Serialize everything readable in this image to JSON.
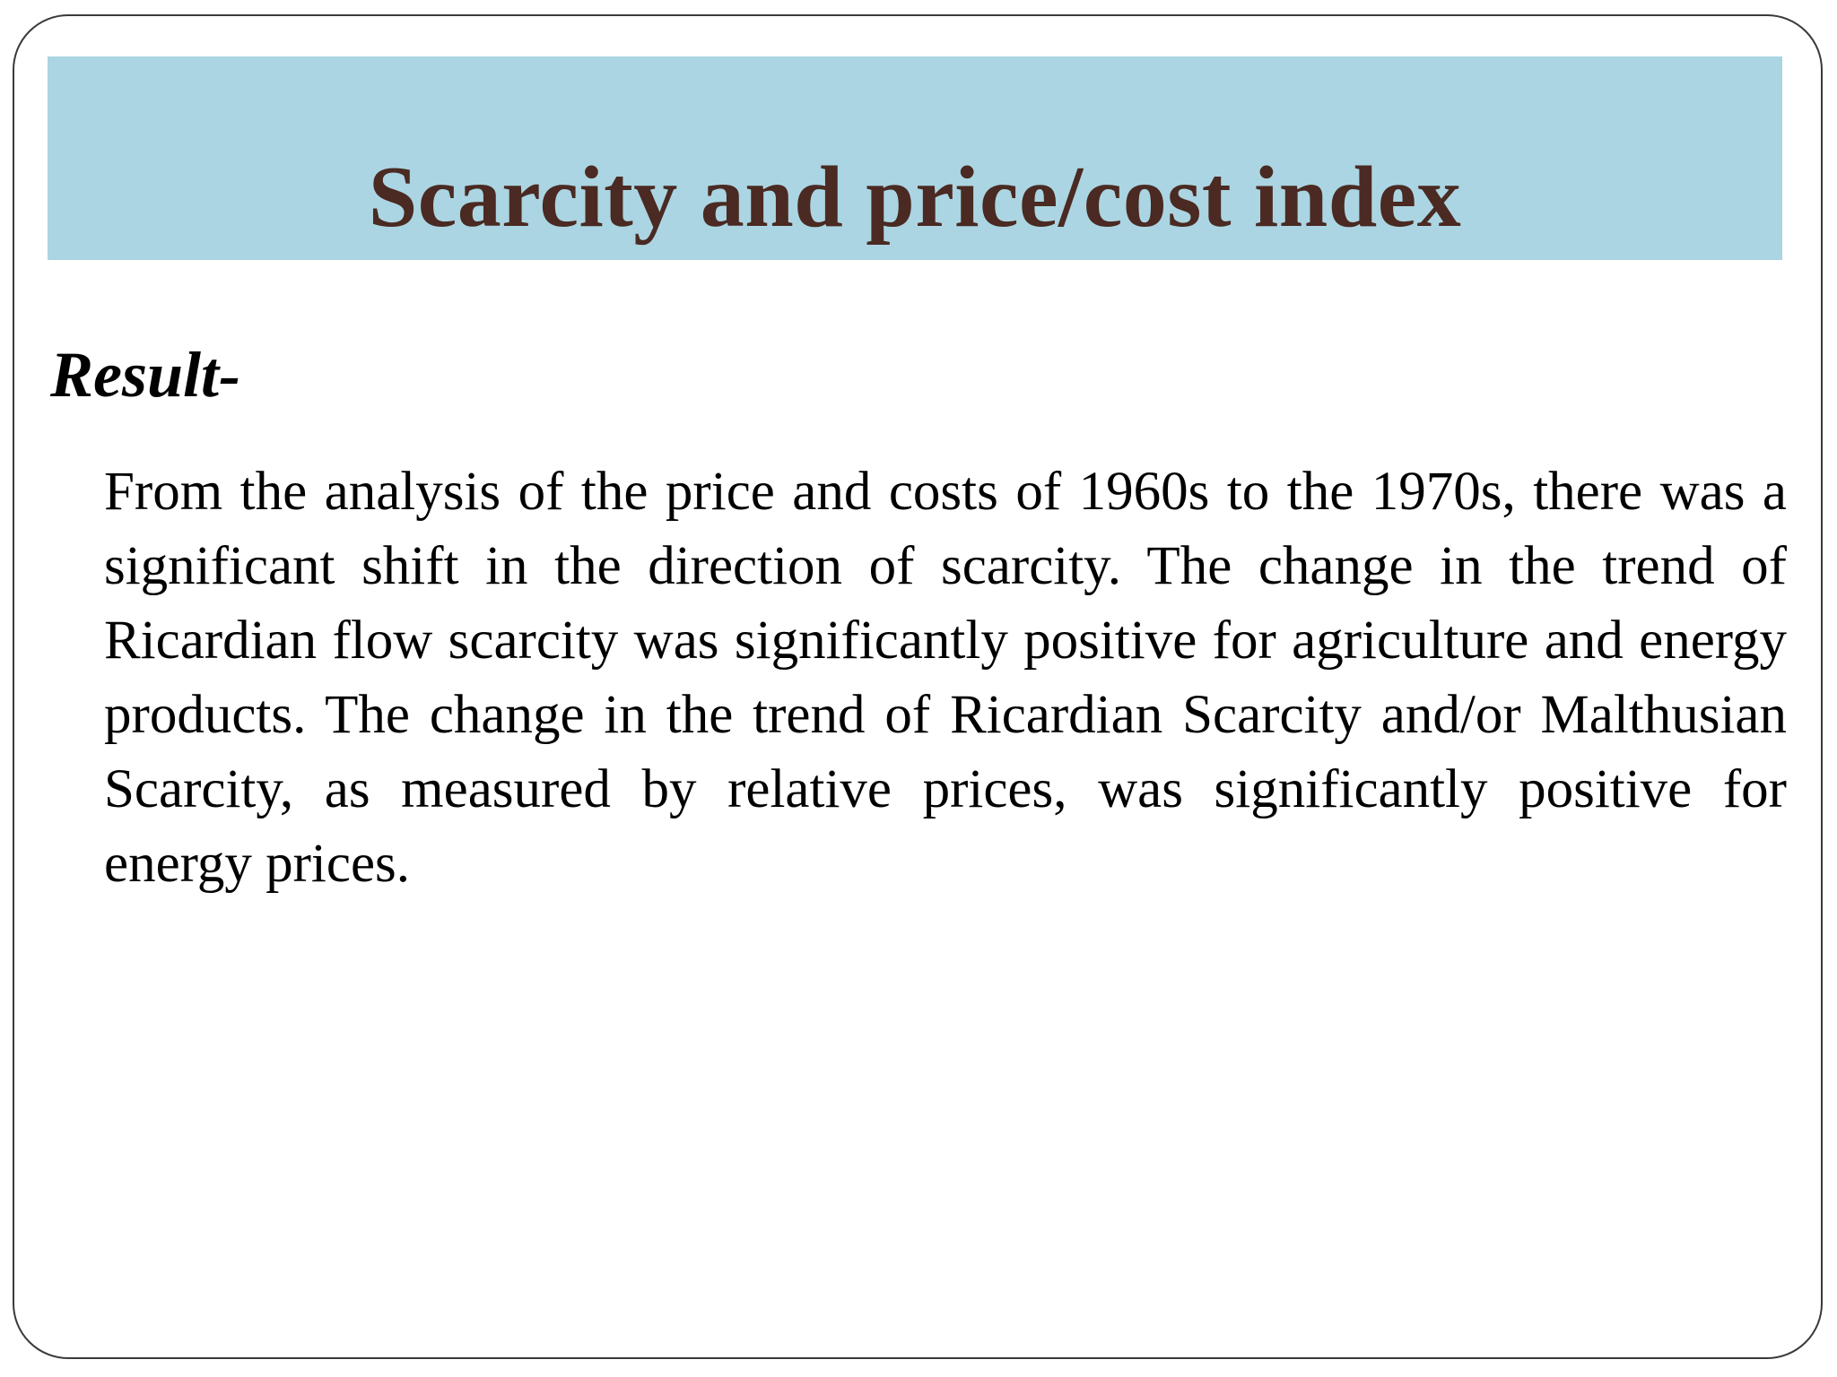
{
  "slide": {
    "title": "Scarcity and price/cost index",
    "subheading": "Result-",
    "body": "From the analysis of the price and costs of 1960s to the 1970s, there was a significant shift in the direction of scarcity. The change in the trend of Ricardian flow scarcity was significantly positive for agriculture and energy products. The change in the trend of Ricardian Scarcity and/or Malthusian Scarcity, as measured by relative prices, was significantly positive for energy prices."
  },
  "colors": {
    "title_band": "#abd5e2",
    "title_text": "#4a2a22",
    "body_text": "#000000",
    "frame_border": "#3a3a3a"
  }
}
